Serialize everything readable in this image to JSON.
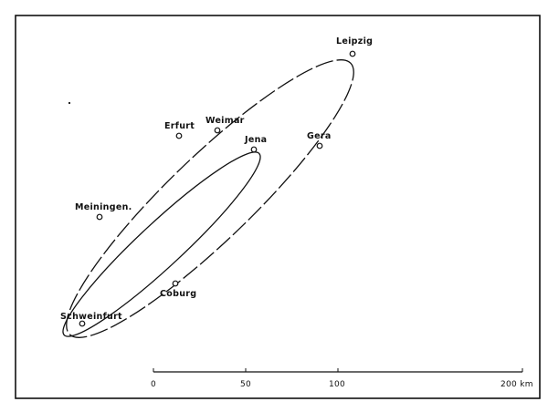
{
  "map": {
    "cities": [
      {
        "name": "Leipzig"
      },
      {
        "name": "Erfurt"
      },
      {
        "name": "Weimar"
      },
      {
        "name": "Jena"
      },
      {
        "name": "Gera"
      },
      {
        "name": "Meiningen."
      },
      {
        "name": "Coburg"
      },
      {
        "name": "Schweinfurt"
      }
    ],
    "scale_bar": {
      "ticks": [
        "0",
        "50",
        "100"
      ],
      "end_label": "200 km"
    }
  }
}
